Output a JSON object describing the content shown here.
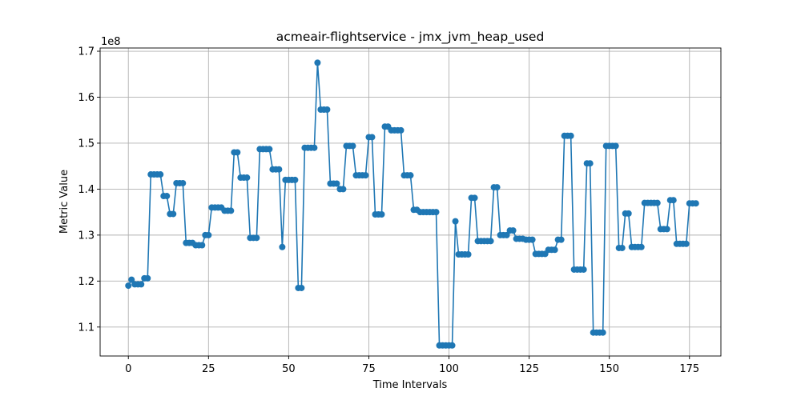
{
  "chart_data": {
    "type": "line",
    "title": "acmeair-flightservice - jmx_jvm_heap_used",
    "xlabel": "Time Intervals",
    "ylabel": "Metric Value",
    "y_offset_label": "1e8",
    "xlim": [
      -8.8,
      184.8
    ],
    "ylim": [
      1.037,
      1.707
    ],
    "x_ticks": [
      0,
      25,
      50,
      75,
      100,
      125,
      150,
      175
    ],
    "x_tick_labels": [
      "0",
      "25",
      "50",
      "75",
      "100",
      "125",
      "150",
      "175"
    ],
    "y_ticks": [
      1.1,
      1.2,
      1.3,
      1.4,
      1.5,
      1.6,
      1.7
    ],
    "y_tick_labels": [
      "1.1",
      "1.2",
      "1.3",
      "1.4",
      "1.5",
      "1.6",
      "1.7"
    ],
    "grid": true,
    "marker": "circle",
    "color": "#1f77b4",
    "series": [
      {
        "values": [
          1.19,
          1.203,
          1.193,
          1.193,
          1.193,
          1.206,
          1.206,
          1.432,
          1.432,
          1.432,
          1.432,
          1.385,
          1.385,
          1.346,
          1.346,
          1.413,
          1.413,
          1.413,
          1.283,
          1.283,
          1.283,
          1.278,
          1.278,
          1.278,
          1.3,
          1.3,
          1.36,
          1.36,
          1.36,
          1.36,
          1.353,
          1.353,
          1.353,
          1.48,
          1.48,
          1.425,
          1.425,
          1.425,
          1.294,
          1.294,
          1.294,
          1.487,
          1.487,
          1.487,
          1.487,
          1.443,
          1.443,
          1.443,
          1.274,
          1.42,
          1.42,
          1.42,
          1.42,
          1.185,
          1.185,
          1.49,
          1.49,
          1.49,
          1.49,
          1.675,
          1.573,
          1.573,
          1.573,
          1.412,
          1.412,
          1.412,
          1.4,
          1.4,
          1.494,
          1.494,
          1.494,
          1.43,
          1.43,
          1.43,
          1.43,
          1.513,
          1.513,
          1.345,
          1.345,
          1.345,
          1.536,
          1.536,
          1.528,
          1.528,
          1.528,
          1.528,
          1.43,
          1.43,
          1.43,
          1.355,
          1.355,
          1.35,
          1.35,
          1.35,
          1.35,
          1.35,
          1.35,
          1.06,
          1.06,
          1.06,
          1.06,
          1.06,
          1.33,
          1.258,
          1.258,
          1.258,
          1.258,
          1.381,
          1.381,
          1.287,
          1.287,
          1.287,
          1.287,
          1.287,
          1.404,
          1.404,
          1.3,
          1.3,
          1.3,
          1.31,
          1.31,
          1.292,
          1.292,
          1.292,
          1.29,
          1.29,
          1.29,
          1.259,
          1.259,
          1.259,
          1.259,
          1.268,
          1.268,
          1.268,
          1.29,
          1.29,
          1.516,
          1.516,
          1.516,
          1.225,
          1.225,
          1.225,
          1.225,
          1.456,
          1.456,
          1.088,
          1.088,
          1.088,
          1.088,
          1.494,
          1.494,
          1.494,
          1.494,
          1.272,
          1.272,
          1.347,
          1.347,
          1.274,
          1.274,
          1.274,
          1.274,
          1.37,
          1.37,
          1.37,
          1.37,
          1.37,
          1.313,
          1.313,
          1.313,
          1.376,
          1.376,
          1.281,
          1.281,
          1.281,
          1.281,
          1.369,
          1.369,
          1.369
        ]
      }
    ]
  }
}
